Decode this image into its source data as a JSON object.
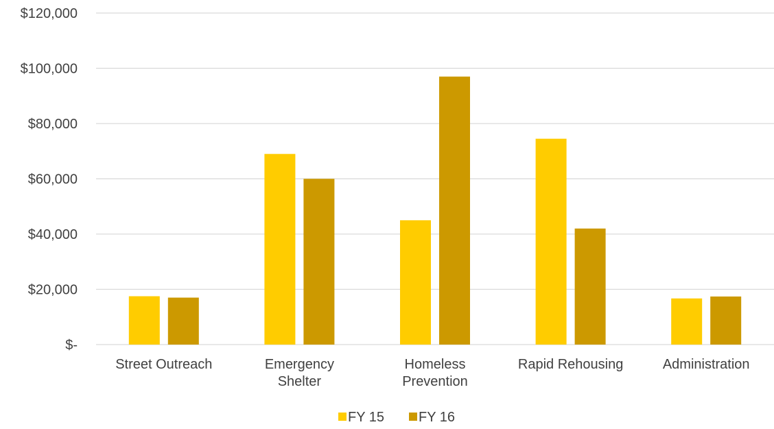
{
  "chart_data": {
    "type": "bar",
    "title": "",
    "xlabel": "",
    "ylabel": "",
    "categories": [
      [
        "Street Outreach"
      ],
      [
        "Emergency",
        "Shelter"
      ],
      [
        "Homeless",
        "Prevention"
      ],
      [
        "Rapid Rehousing"
      ],
      [
        "Administration"
      ]
    ],
    "series": [
      {
        "name": "FY 15",
        "color": "#ffcc00",
        "values": [
          17500,
          69000,
          45000,
          74500,
          16700
        ]
      },
      {
        "name": "FY 16",
        "color": "#cc9900",
        "values": [
          17000,
          60000,
          97000,
          42000,
          17400
        ]
      }
    ],
    "ylim": [
      0,
      120000
    ],
    "yticks": [
      0,
      20000,
      40000,
      60000,
      80000,
      100000,
      120000
    ],
    "ytick_labels": [
      "$-",
      "$20,000",
      "$40,000",
      "$60,000",
      "$80,000",
      "$100,000",
      "$120,000"
    ],
    "grid": true,
    "legend_position": "bottom"
  }
}
